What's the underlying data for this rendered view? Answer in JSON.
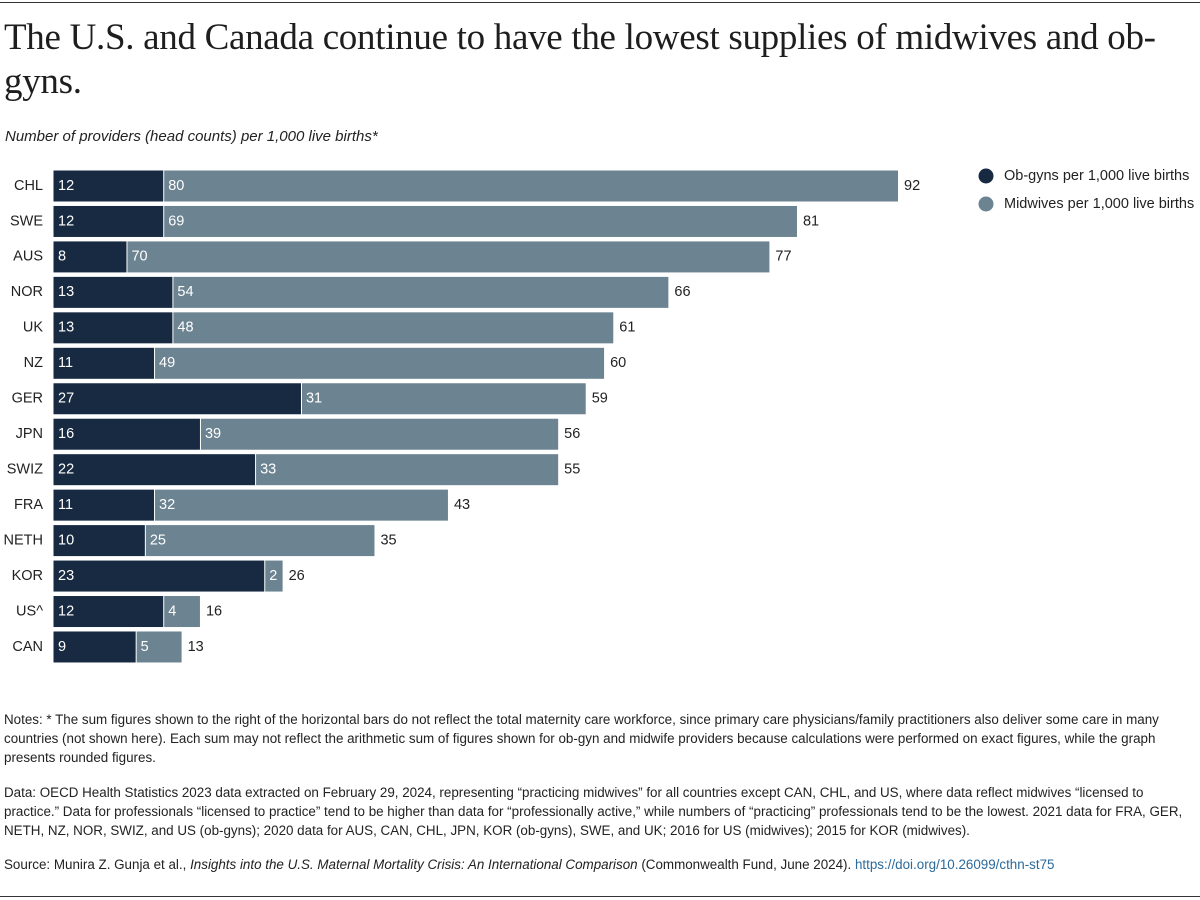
{
  "chart_data": {
    "type": "stacked-barh",
    "title": "The U.S. and Canada continue to have the lowest supplies of midwives and ob-gyns.",
    "subtitle": "Number of providers (head counts) per 1,000 live births*",
    "categories": [
      "CHL",
      "SWE",
      "AUS",
      "NOR",
      "UK",
      "NZ",
      "GER",
      "JPN",
      "SWIZ",
      "FRA",
      "NETH",
      "KOR",
      "US^",
      "CAN"
    ],
    "series": [
      {
        "name": "Ob-gyns per 1,000 live births",
        "color": "#172a41",
        "values": [
          12,
          12,
          8,
          13,
          13,
          11,
          27,
          16,
          22,
          11,
          10,
          23,
          12,
          9
        ]
      },
      {
        "name": "Midwives per 1,000 live births",
        "color": "#6c8391",
        "values": [
          80,
          69,
          70,
          54,
          48,
          49,
          31,
          39,
          33,
          32,
          25,
          2,
          4,
          5
        ]
      }
    ],
    "totals": [
      92,
      81,
      77,
      66,
      61,
      60,
      59,
      56,
      55,
      43,
      35,
      26,
      16,
      13
    ],
    "xlim": [
      0,
      92
    ],
    "legend": "right",
    "notes": "Notes: * The sum figures shown to the right of the horizontal bars do not reflect the total maternity care workforce, since primary care physicians/family practitioners also deliver some care in many countries (not shown here). Each sum may not reflect the arithmetic sum of figures shown for ob-gyn and midwife providers because calculations were performed on exact figures, while the graph presents rounded figures.",
    "data_note": "Data: OECD Health Statistics 2023 data extracted on February 29, 2024, representing “practicing midwives” for all countries except CAN, CHL, and US, where data reflect midwives “licensed to practice.” Data for professionals “licensed to practice” tend to be higher than data for “professionally active,” while numbers of “practicing” professionals tend to be the lowest. 2021 data for FRA, GER, NETH, NZ, NOR, SWIZ, and US (ob-gyns); 2020 data for AUS, CAN, CHL, JPN, KOR (ob-gyns), SWE, and UK; 2016 for US (midwives); 2015 for KOR (midwives).",
    "source": [
      "Source: Munira Z. Gunja et al., ",
      "Insights into the U.S. Maternal Mortality Crisis: An International Comparison",
      " (Commonwealth Fund, June 2024). ",
      "https://doi.org/10.26099/cthn-st75"
    ]
  }
}
